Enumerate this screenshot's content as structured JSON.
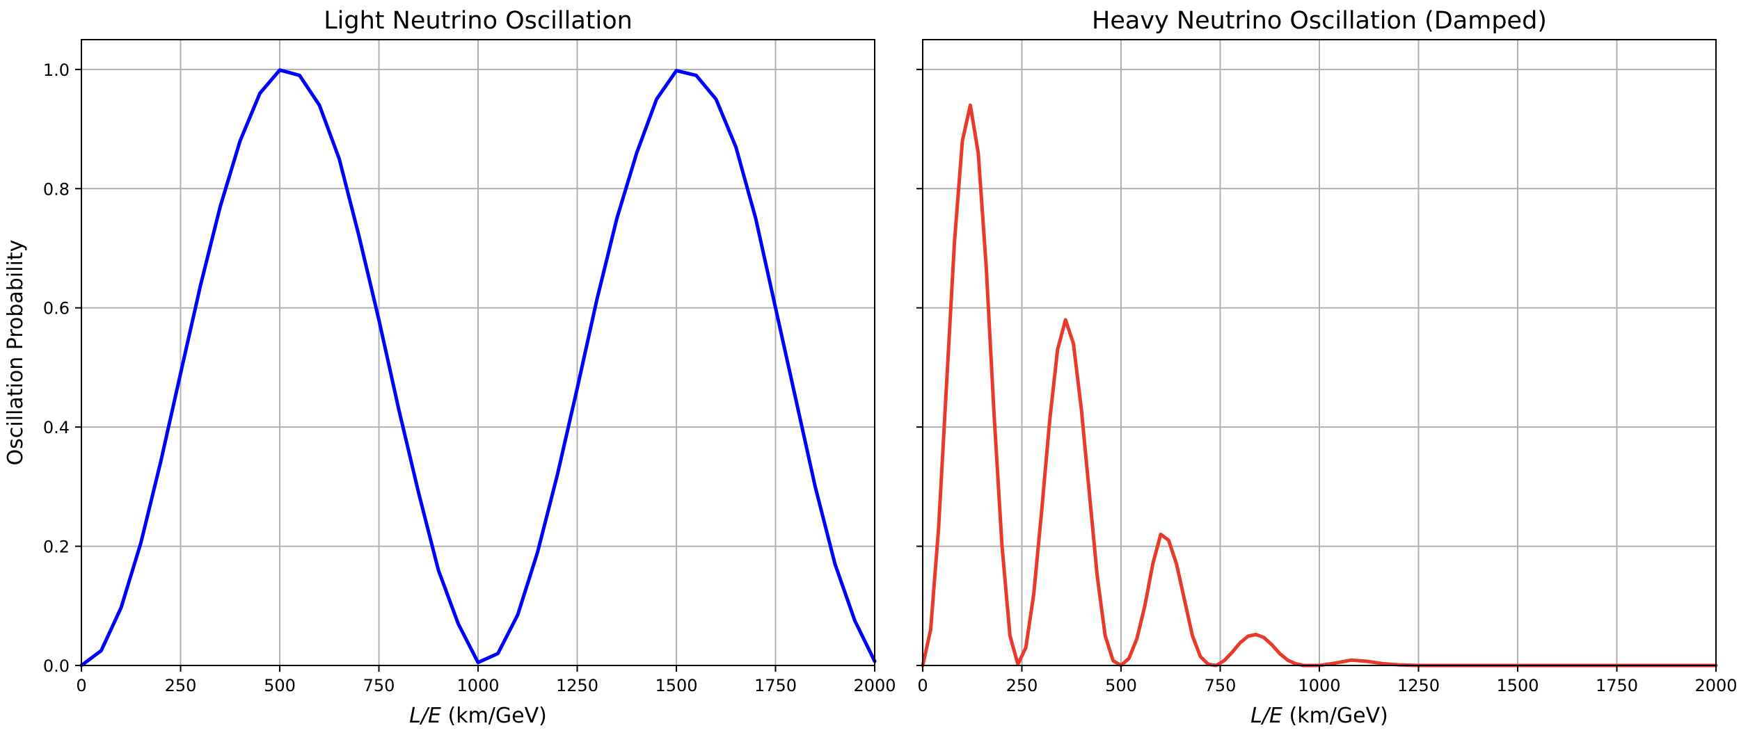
{
  "chart_data": [
    {
      "type": "line",
      "title": "Light Neutrino Oscillation",
      "xlabel_italic": "L/E",
      "xlabel_unit": " (km/GeV)",
      "ylabel": "Oscillation Probability",
      "xlim": [
        0,
        2000
      ],
      "ylim": [
        0,
        1.05
      ],
      "xticks": [
        0,
        250,
        500,
        750,
        1000,
        1250,
        1500,
        1750,
        2000
      ],
      "xtick_labels": [
        "0",
        "250",
        "500",
        "750",
        "1000",
        "1250",
        "1500",
        "1750",
        "2000"
      ],
      "yticks": [
        0,
        0.2,
        0.4,
        0.6,
        0.8,
        1.0
      ],
      "ytick_labels": [
        "0.0",
        "0.2",
        "0.4",
        "0.6",
        "0.8",
        "1.0"
      ],
      "show_ytick_labels": true,
      "grid": true,
      "series": [
        {
          "color": "#0000ff",
          "x": [
            0,
            50,
            100,
            150,
            200,
            250,
            300,
            350,
            400,
            450,
            500,
            550,
            600,
            650,
            700,
            750,
            800,
            850,
            900,
            950,
            1000,
            1050,
            1100,
            1150,
            1200,
            1250,
            1300,
            1350,
            1400,
            1450,
            1500,
            1550,
            1600,
            1650,
            1700,
            1750,
            1800,
            1850,
            1900,
            1950,
            2000
          ],
          "y": [
            0,
            0.025,
            0.097,
            0.206,
            0.342,
            0.49,
            0.637,
            0.77,
            0.88,
            0.96,
            0.999,
            0.99,
            0.94,
            0.85,
            0.72,
            0.58,
            0.43,
            0.29,
            0.16,
            0.07,
            0.005,
            0.02,
            0.085,
            0.19,
            0.32,
            0.465,
            0.615,
            0.75,
            0.86,
            0.95,
            0.998,
            0.99,
            0.95,
            0.87,
            0.75,
            0.6,
            0.45,
            0.3,
            0.17,
            0.075,
            0.007
          ]
        }
      ]
    },
    {
      "type": "line",
      "title": "Heavy Neutrino Oscillation (Damped)",
      "xlabel_italic": "L/E",
      "xlabel_unit": " (km/GeV)",
      "ylabel": "",
      "xlim": [
        0,
        2000
      ],
      "ylim": [
        0,
        1.05
      ],
      "xticks": [
        0,
        250,
        500,
        750,
        1000,
        1250,
        1500,
        1750,
        2000
      ],
      "xtick_labels": [
        "0",
        "250",
        "500",
        "750",
        "1000",
        "1250",
        "1500",
        "1750",
        "2000"
      ],
      "yticks": [
        0,
        0.2,
        0.4,
        0.6,
        0.8,
        1.0
      ],
      "ytick_labels": [
        "",
        "",
        "",
        "",
        "",
        ""
      ],
      "show_ytick_labels": false,
      "grid": true,
      "series": [
        {
          "color": "#e8392b",
          "x": [
            0,
            20,
            40,
            60,
            80,
            100,
            120,
            140,
            160,
            180,
            200,
            220,
            240,
            260,
            280,
            300,
            320,
            340,
            360,
            380,
            400,
            420,
            440,
            460,
            480,
            500,
            520,
            540,
            560,
            580,
            600,
            620,
            640,
            660,
            680,
            700,
            720,
            740,
            760,
            780,
            800,
            820,
            840,
            860,
            880,
            900,
            920,
            940,
            960,
            980,
            1000,
            1040,
            1080,
            1120,
            1160,
            1200,
            1250,
            1300,
            1500,
            1750,
            2000
          ],
          "y": [
            0,
            0.06,
            0.23,
            0.47,
            0.71,
            0.88,
            0.94,
            0.86,
            0.67,
            0.42,
            0.2,
            0.05,
            0.002,
            0.03,
            0.12,
            0.26,
            0.41,
            0.53,
            0.58,
            0.54,
            0.43,
            0.29,
            0.15,
            0.05,
            0.008,
            0.0,
            0.012,
            0.045,
            0.1,
            0.17,
            0.22,
            0.21,
            0.17,
            0.11,
            0.05,
            0.015,
            0.002,
            0.0,
            0.008,
            0.022,
            0.038,
            0.049,
            0.052,
            0.047,
            0.035,
            0.02,
            0.009,
            0.003,
            0.0,
            0.0,
            0.0,
            0.004,
            0.009,
            0.007,
            0.003,
            0.001,
            0.0,
            0.0,
            0.0,
            0.0,
            0.0
          ]
        }
      ]
    }
  ]
}
